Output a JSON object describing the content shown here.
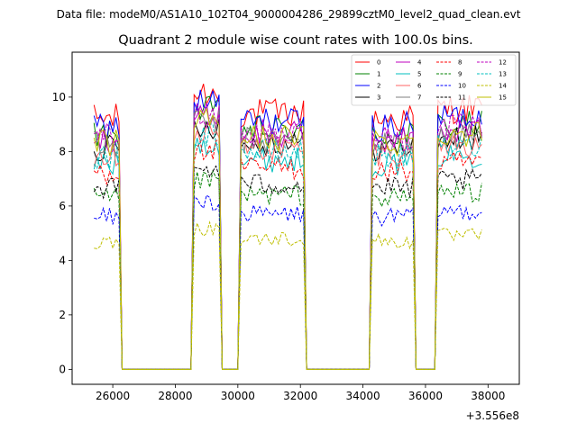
{
  "suptitle": "Data file: modeM0/AS1A10_102T04_9000004286_29899cztM0_level2_quad_clean.evt",
  "chart_data": {
    "type": "line",
    "title": "Quadrant 2 module wise count rates with 100.0s bins.",
    "xlabel": "",
    "ylabel": "",
    "x_offset_label": "+3.556e8",
    "xlim": [
      24700,
      39000
    ],
    "ylim": [
      -0.55,
      11.65
    ],
    "x_ticks": [
      26000,
      28000,
      30000,
      32000,
      34000,
      36000,
      38000
    ],
    "x_tick_labels": [
      "26000",
      "28000",
      "30000",
      "32000",
      "34000",
      "36000",
      "38000"
    ],
    "y_ticks": [
      0,
      2,
      4,
      6,
      8,
      10
    ],
    "y_tick_labels": [
      "0",
      "2",
      "4",
      "6",
      "8",
      "10"
    ],
    "grid": false,
    "legend_position": "top-right",
    "segments": [
      {
        "start": 25400,
        "end": 26200
      },
      {
        "start": 28550,
        "end": 29450
      },
      {
        "start": 30050,
        "end": 32150
      },
      {
        "start": 34250,
        "end": 35650
      },
      {
        "start": 36350,
        "end": 37850
      }
    ],
    "series": [
      {
        "name": "0",
        "color": "#ff0000",
        "dash": "solid",
        "level": 9.4
      },
      {
        "name": "1",
        "color": "#008000",
        "dash": "solid",
        "level": 8.8
      },
      {
        "name": "2",
        "color": "#0000ff",
        "dash": "solid",
        "level": 9.1
      },
      {
        "name": "3",
        "color": "#000000",
        "dash": "solid",
        "level": 8.3
      },
      {
        "name": "4",
        "color": "#bf00bf",
        "dash": "solid",
        "level": 8.6
      },
      {
        "name": "5",
        "color": "#00bfbf",
        "dash": "solid",
        "level": 7.7
      },
      {
        "name": "6",
        "color": "#ff6666",
        "dash": "solid",
        "level": 8.1
      },
      {
        "name": "7",
        "color": "#7f7f7f",
        "dash": "solid",
        "level": 8.4
      },
      {
        "name": "8",
        "color": "#ff0000",
        "dash": "dashed",
        "level": 7.4
      },
      {
        "name": "9",
        "color": "#008000",
        "dash": "dashed",
        "level": 6.4
      },
      {
        "name": "10",
        "color": "#0000ff",
        "dash": "dashed",
        "level": 5.7
      },
      {
        "name": "11",
        "color": "#000000",
        "dash": "dashed",
        "level": 6.8
      },
      {
        "name": "12",
        "color": "#bf00bf",
        "dash": "dashed",
        "level": 8.7
      },
      {
        "name": "13",
        "color": "#00bfbf",
        "dash": "dashed",
        "level": 8.0
      },
      {
        "name": "14",
        "color": "#bfbf00",
        "dash": "dashed",
        "level": 4.8
      },
      {
        "name": "15",
        "color": "#bfbf00",
        "dash": "solid",
        "level": 8.5
      }
    ]
  }
}
